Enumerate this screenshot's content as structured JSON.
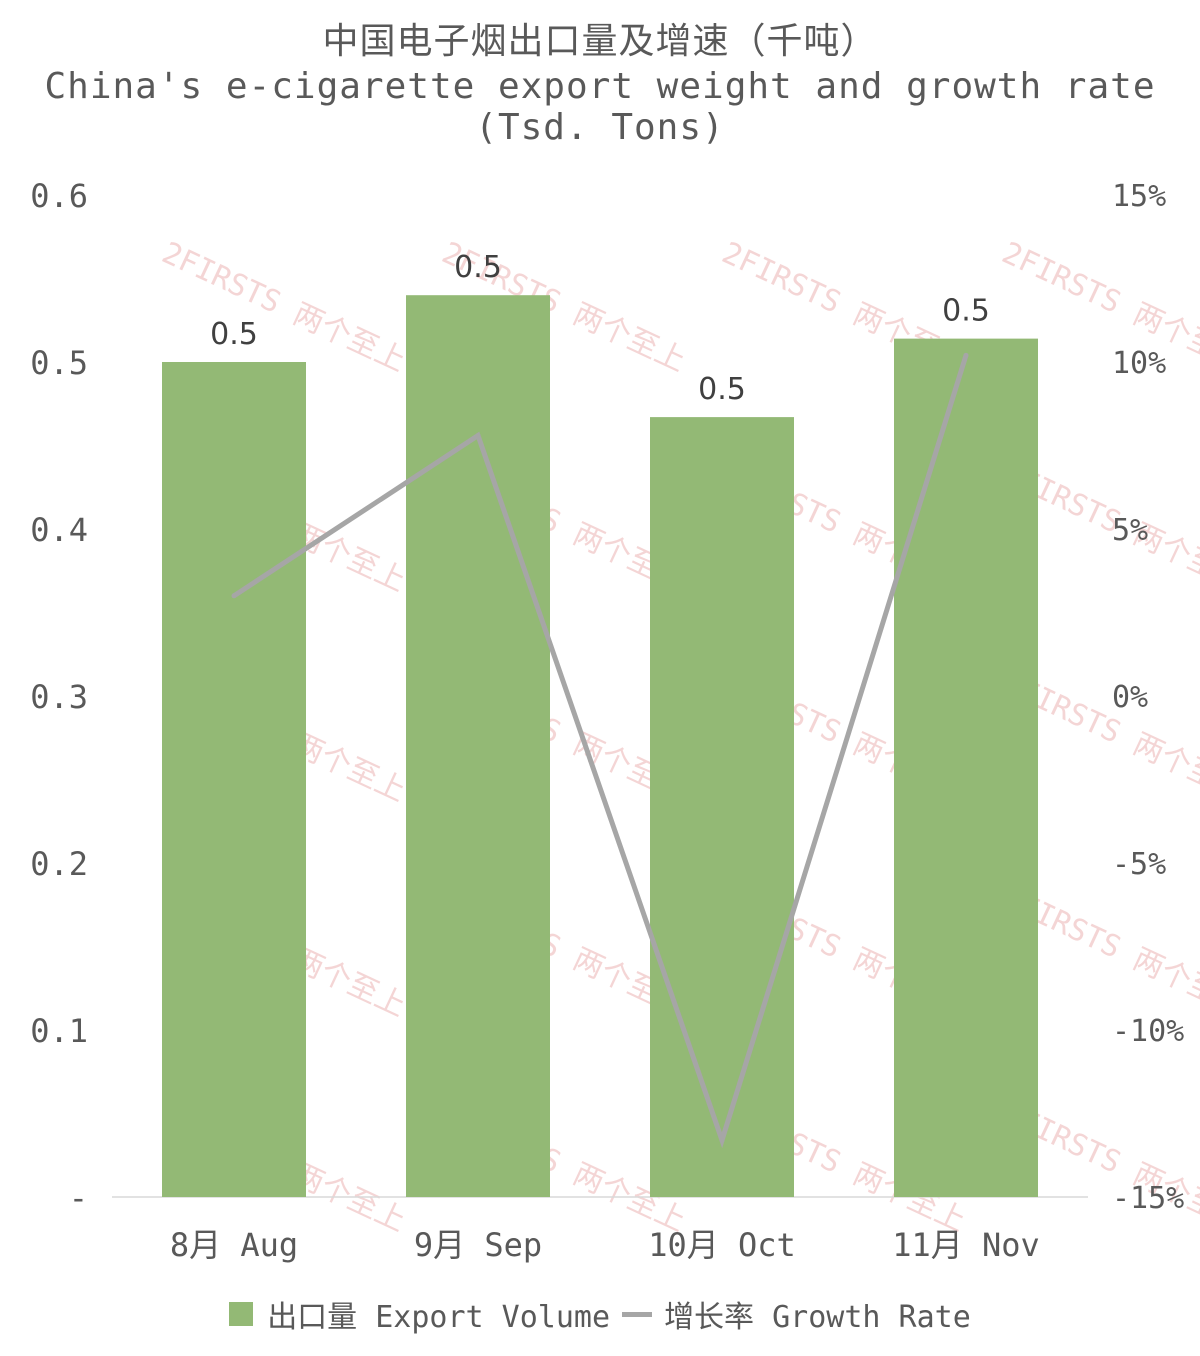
{
  "chart_data": {
    "type": "bar",
    "title": "中国电子烟出口量及增速（千吨）",
    "subtitle": "China's e-cigarette export weight and growth rate (Tsd. Tons)",
    "categories": [
      "8月 Aug",
      "9月 Sep",
      "10月 Oct",
      "11月 Nov"
    ],
    "series": [
      {
        "name": "出口量 Export Volume",
        "type": "bar",
        "axis": "left",
        "color": "#93b975",
        "values": [
          0.5,
          0.54,
          0.467,
          0.514
        ],
        "labels": [
          "0.5",
          "0.5",
          "0.5",
          "0.5"
        ]
      },
      {
        "name": "增长率 Growth Rate",
        "type": "line",
        "axis": "right",
        "color": "#a6a6a6",
        "values": [
          3.0,
          7.8,
          -13.3,
          10.2
        ]
      }
    ],
    "y_left": {
      "range": [
        0,
        0.6
      ],
      "ticks": [
        0,
        0.1,
        0.2,
        0.3,
        0.4,
        0.5,
        0.6
      ],
      "tick_labels": [
        "-",
        "0.1",
        "0.2",
        "0.3",
        "0.4",
        "0.5",
        "0.6"
      ]
    },
    "y_right": {
      "range": [
        -15,
        15
      ],
      "ticks": [
        -15,
        -10,
        -5,
        0,
        5,
        10,
        15
      ],
      "tick_labels": [
        "-15%",
        "-10%",
        "-5%",
        "0%",
        "5%",
        "10%",
        "15%"
      ]
    },
    "grid": false,
    "legend_position": "bottom",
    "watermark": "2FIRSTS 两个至上"
  }
}
